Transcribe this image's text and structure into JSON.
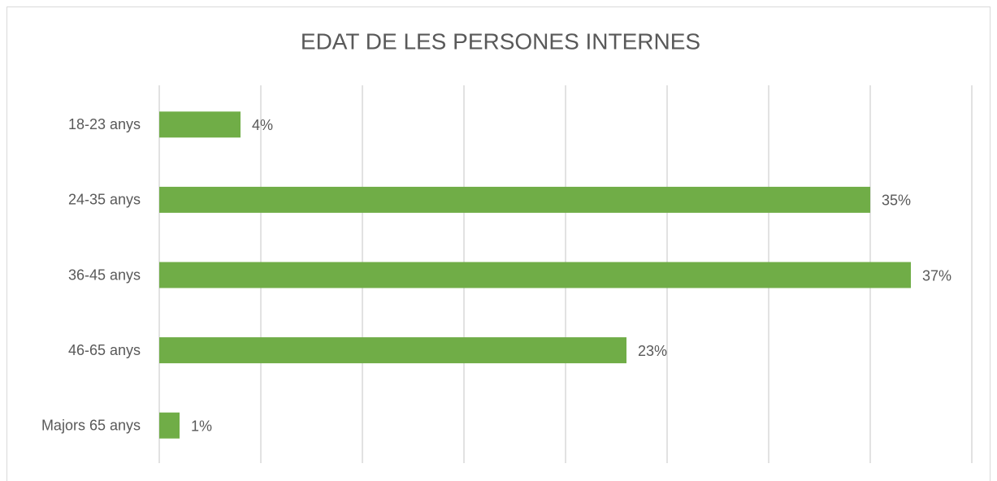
{
  "chart_data": {
    "type": "bar",
    "orientation": "horizontal",
    "title": "EDAT DE LES PERSONES INTERNES",
    "categories": [
      "18-23 anys",
      "24-35 anys",
      "36-45 anys",
      "46-65 anys",
      "Majors 65 anys"
    ],
    "values": [
      4,
      35,
      37,
      23,
      1
    ],
    "value_labels": [
      "4%",
      "35%",
      "37%",
      "23%",
      "1%"
    ],
    "color": "#70ad47",
    "xlim": [
      0,
      40
    ],
    "xticks": [
      0,
      5,
      10,
      15,
      20,
      25,
      30,
      35,
      40
    ],
    "grid": true
  }
}
